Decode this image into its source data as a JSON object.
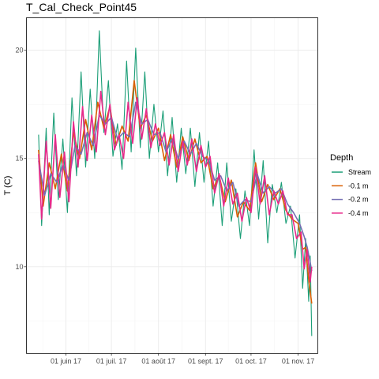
{
  "chart_data": {
    "type": "line",
    "title": "T_Cal_Check_Point45",
    "xlabel": "",
    "ylabel": "T (C)",
    "x_range": [
      "2017-05-06",
      "2017-11-14"
    ],
    "ylim": [
      6.0,
      21.5
    ],
    "x_ticks": [
      {
        "date": "2017-06-01",
        "label": "01 juin 17"
      },
      {
        "date": "2017-07-01",
        "label": "01 juil. 17"
      },
      {
        "date": "2017-08-01",
        "label": "01 août 17"
      },
      {
        "date": "2017-09-01",
        "label": "01 sept. 17"
      },
      {
        "date": "2017-10-01",
        "label": "01 oct. 17"
      },
      {
        "date": "2017-11-01",
        "label": "01 nov. 17"
      }
    ],
    "y_ticks": [
      10,
      15,
      20
    ],
    "grid": true,
    "legend": {
      "title": "Depth",
      "position": "right"
    },
    "series": [
      {
        "name": "Stream",
        "color": "#1b9e77",
        "points": [
          [
            "2017-05-14",
            16.1
          ],
          [
            "2017-05-16",
            11.9
          ],
          [
            "2017-05-19",
            16.4
          ],
          [
            "2017-05-21",
            12.4
          ],
          [
            "2017-05-24",
            17.1
          ],
          [
            "2017-05-27",
            13.1
          ],
          [
            "2017-05-30",
            15.9
          ],
          [
            "2017-06-02",
            12.5
          ],
          [
            "2017-06-05",
            17.8
          ],
          [
            "2017-06-08",
            14.2
          ],
          [
            "2017-06-11",
            19.0
          ],
          [
            "2017-06-14",
            14.6
          ],
          [
            "2017-06-17",
            18.2
          ],
          [
            "2017-06-20",
            15.0
          ],
          [
            "2017-06-23",
            20.9
          ],
          [
            "2017-06-26",
            16.2
          ],
          [
            "2017-06-29",
            18.6
          ],
          [
            "2017-07-02",
            15.1
          ],
          [
            "2017-07-05",
            16.6
          ],
          [
            "2017-07-08",
            14.5
          ],
          [
            "2017-07-11",
            19.5
          ],
          [
            "2017-07-14",
            15.3
          ],
          [
            "2017-07-17",
            20.1
          ],
          [
            "2017-07-20",
            15.5
          ],
          [
            "2017-07-23",
            19.0
          ],
          [
            "2017-07-26",
            15.0
          ],
          [
            "2017-07-29",
            17.5
          ],
          [
            "2017-08-01",
            15.3
          ],
          [
            "2017-08-04",
            17.2
          ],
          [
            "2017-08-07",
            14.2
          ],
          [
            "2017-08-10",
            16.9
          ],
          [
            "2017-08-13",
            13.9
          ],
          [
            "2017-08-16",
            16.4
          ],
          [
            "2017-08-19",
            14.3
          ],
          [
            "2017-08-22",
            16.4
          ],
          [
            "2017-08-25",
            13.7
          ],
          [
            "2017-08-28",
            16.2
          ],
          [
            "2017-08-31",
            13.9
          ],
          [
            "2017-09-03",
            15.8
          ],
          [
            "2017-09-06",
            12.8
          ],
          [
            "2017-09-09",
            14.8
          ],
          [
            "2017-09-12",
            11.9
          ],
          [
            "2017-09-15",
            14.8
          ],
          [
            "2017-09-18",
            12.1
          ],
          [
            "2017-09-21",
            13.6
          ],
          [
            "2017-09-24",
            11.3
          ],
          [
            "2017-09-27",
            13.5
          ],
          [
            "2017-09-30",
            11.9
          ],
          [
            "2017-10-03",
            15.4
          ],
          [
            "2017-10-06",
            12.2
          ],
          [
            "2017-10-09",
            14.9
          ],
          [
            "2017-10-12",
            11.1
          ],
          [
            "2017-10-15",
            13.8
          ],
          [
            "2017-10-18",
            12.5
          ],
          [
            "2017-10-21",
            13.9
          ],
          [
            "2017-10-24",
            12.0
          ],
          [
            "2017-10-27",
            12.8
          ],
          [
            "2017-10-30",
            10.4
          ],
          [
            "2017-11-02",
            12.4
          ],
          [
            "2017-11-04",
            9.0
          ],
          [
            "2017-11-06",
            11.3
          ],
          [
            "2017-11-08",
            8.4
          ],
          [
            "2017-11-09",
            10.5
          ],
          [
            "2017-11-10",
            6.8
          ]
        ]
      },
      {
        "name": "-0.1 m",
        "color": "#d95f02",
        "points": [
          [
            "2017-05-14",
            15.4
          ],
          [
            "2017-05-17",
            12.8
          ],
          [
            "2017-05-21",
            14.8
          ],
          [
            "2017-05-25",
            13.6
          ],
          [
            "2017-05-29",
            15.2
          ],
          [
            "2017-06-02",
            13.5
          ],
          [
            "2017-06-06",
            16.2
          ],
          [
            "2017-06-10",
            15.0
          ],
          [
            "2017-06-14",
            16.8
          ],
          [
            "2017-06-18",
            15.4
          ],
          [
            "2017-06-22",
            17.6
          ],
          [
            "2017-06-26",
            16.4
          ],
          [
            "2017-06-30",
            17.4
          ],
          [
            "2017-07-04",
            15.6
          ],
          [
            "2017-07-08",
            16.5
          ],
          [
            "2017-07-12",
            15.8
          ],
          [
            "2017-07-16",
            18.6
          ],
          [
            "2017-07-20",
            16.4
          ],
          [
            "2017-07-24",
            17.0
          ],
          [
            "2017-07-28",
            15.8
          ],
          [
            "2017-08-01",
            16.4
          ],
          [
            "2017-08-05",
            14.9
          ],
          [
            "2017-08-09",
            16.1
          ],
          [
            "2017-08-13",
            14.6
          ],
          [
            "2017-08-17",
            16.0
          ],
          [
            "2017-08-21",
            14.9
          ],
          [
            "2017-08-25",
            15.9
          ],
          [
            "2017-08-29",
            14.8
          ],
          [
            "2017-09-02",
            15.1
          ],
          [
            "2017-09-06",
            13.6
          ],
          [
            "2017-09-10",
            14.2
          ],
          [
            "2017-09-14",
            13.0
          ],
          [
            "2017-09-18",
            14.0
          ],
          [
            "2017-09-22",
            12.3
          ],
          [
            "2017-09-26",
            13.0
          ],
          [
            "2017-09-30",
            12.6
          ],
          [
            "2017-10-04",
            14.8
          ],
          [
            "2017-10-08",
            13.0
          ],
          [
            "2017-10-12",
            13.8
          ],
          [
            "2017-10-16",
            13.1
          ],
          [
            "2017-10-20",
            13.6
          ],
          [
            "2017-10-24",
            12.6
          ],
          [
            "2017-10-28",
            12.2
          ],
          [
            "2017-11-01",
            12.0
          ],
          [
            "2017-11-04",
            10.8
          ],
          [
            "2017-11-06",
            10.9
          ],
          [
            "2017-11-08",
            9.4
          ],
          [
            "2017-11-10",
            8.3
          ]
        ]
      },
      {
        "name": "-0.2 m",
        "color": "#7570b3",
        "points": [
          [
            "2017-05-14",
            14.9
          ],
          [
            "2017-05-18",
            13.3
          ],
          [
            "2017-05-22",
            14.3
          ],
          [
            "2017-05-26",
            13.9
          ],
          [
            "2017-05-30",
            14.7
          ],
          [
            "2017-06-03",
            14.0
          ],
          [
            "2017-06-07",
            15.6
          ],
          [
            "2017-06-11",
            15.2
          ],
          [
            "2017-06-15",
            16.2
          ],
          [
            "2017-06-19",
            15.6
          ],
          [
            "2017-06-23",
            17.0
          ],
          [
            "2017-06-27",
            16.6
          ],
          [
            "2017-07-01",
            16.9
          ],
          [
            "2017-07-05",
            15.9
          ],
          [
            "2017-07-09",
            16.2
          ],
          [
            "2017-07-13",
            16.0
          ],
          [
            "2017-07-17",
            17.6
          ],
          [
            "2017-07-21",
            16.6
          ],
          [
            "2017-07-25",
            16.8
          ],
          [
            "2017-07-29",
            16.1
          ],
          [
            "2017-08-02",
            16.2
          ],
          [
            "2017-08-06",
            15.3
          ],
          [
            "2017-08-10",
            15.9
          ],
          [
            "2017-08-14",
            15.0
          ],
          [
            "2017-08-18",
            15.8
          ],
          [
            "2017-08-22",
            15.2
          ],
          [
            "2017-08-26",
            15.7
          ],
          [
            "2017-08-30",
            15.1
          ],
          [
            "2017-09-03",
            14.9
          ],
          [
            "2017-09-07",
            14.0
          ],
          [
            "2017-09-11",
            14.2
          ],
          [
            "2017-09-15",
            13.5
          ],
          [
            "2017-09-19",
            13.9
          ],
          [
            "2017-09-23",
            12.8
          ],
          [
            "2017-09-27",
            13.1
          ],
          [
            "2017-10-01",
            13.0
          ],
          [
            "2017-10-05",
            14.3
          ],
          [
            "2017-10-09",
            13.4
          ],
          [
            "2017-10-13",
            13.7
          ],
          [
            "2017-10-17",
            13.4
          ],
          [
            "2017-10-21",
            13.6
          ],
          [
            "2017-10-25",
            12.9
          ],
          [
            "2017-10-29",
            12.5
          ],
          [
            "2017-11-02",
            12.0
          ],
          [
            "2017-11-05",
            11.4
          ],
          [
            "2017-11-07",
            10.9
          ],
          [
            "2017-11-09",
            10.2
          ],
          [
            "2017-11-10",
            9.8
          ]
        ]
      },
      {
        "name": "-0.4 m",
        "color": "#e7298a",
        "points": [
          [
            "2017-05-14",
            15.2
          ],
          [
            "2017-05-16",
            12.2
          ],
          [
            "2017-05-19",
            15.8
          ],
          [
            "2017-05-22",
            12.7
          ],
          [
            "2017-05-25",
            16.1
          ],
          [
            "2017-05-28",
            13.2
          ],
          [
            "2017-05-31",
            15.3
          ],
          [
            "2017-06-03",
            13.0
          ],
          [
            "2017-06-06",
            16.7
          ],
          [
            "2017-06-09",
            14.6
          ],
          [
            "2017-06-12",
            17.4
          ],
          [
            "2017-06-15",
            14.9
          ],
          [
            "2017-06-18",
            17.0
          ],
          [
            "2017-06-21",
            15.3
          ],
          [
            "2017-06-24",
            18.1
          ],
          [
            "2017-06-27",
            16.1
          ],
          [
            "2017-06-30",
            17.5
          ],
          [
            "2017-07-03",
            15.4
          ],
          [
            "2017-07-06",
            16.1
          ],
          [
            "2017-07-09",
            15.0
          ],
          [
            "2017-07-12",
            17.6
          ],
          [
            "2017-07-15",
            15.7
          ],
          [
            "2017-07-18",
            17.8
          ],
          [
            "2017-07-21",
            15.9
          ],
          [
            "2017-07-24",
            17.3
          ],
          [
            "2017-07-27",
            15.5
          ],
          [
            "2017-07-30",
            16.6
          ],
          [
            "2017-08-02",
            15.6
          ],
          [
            "2017-08-05",
            16.2
          ],
          [
            "2017-08-08",
            14.7
          ],
          [
            "2017-08-11",
            16.1
          ],
          [
            "2017-08-14",
            14.4
          ],
          [
            "2017-08-17",
            15.8
          ],
          [
            "2017-08-20",
            14.7
          ],
          [
            "2017-08-23",
            15.9
          ],
          [
            "2017-08-26",
            14.4
          ],
          [
            "2017-08-29",
            15.6
          ],
          [
            "2017-09-01",
            14.6
          ],
          [
            "2017-09-04",
            15.1
          ],
          [
            "2017-09-07",
            13.4
          ],
          [
            "2017-09-10",
            14.3
          ],
          [
            "2017-09-13",
            12.8
          ],
          [
            "2017-09-16",
            14.1
          ],
          [
            "2017-09-19",
            12.9
          ],
          [
            "2017-09-22",
            13.4
          ],
          [
            "2017-09-25",
            12.1
          ],
          [
            "2017-09-28",
            13.2
          ],
          [
            "2017-10-01",
            12.5
          ],
          [
            "2017-10-04",
            14.6
          ],
          [
            "2017-10-07",
            12.9
          ],
          [
            "2017-10-10",
            14.2
          ],
          [
            "2017-10-13",
            12.4
          ],
          [
            "2017-10-16",
            13.5
          ],
          [
            "2017-10-19",
            12.9
          ],
          [
            "2017-10-22",
            13.5
          ],
          [
            "2017-10-25",
            12.4
          ],
          [
            "2017-10-28",
            12.4
          ],
          [
            "2017-10-31",
            11.3
          ],
          [
            "2017-11-03",
            11.6
          ],
          [
            "2017-11-05",
            9.9
          ],
          [
            "2017-11-07",
            10.8
          ],
          [
            "2017-11-09",
            9.3
          ],
          [
            "2017-11-10",
            10.0
          ]
        ]
      }
    ]
  }
}
